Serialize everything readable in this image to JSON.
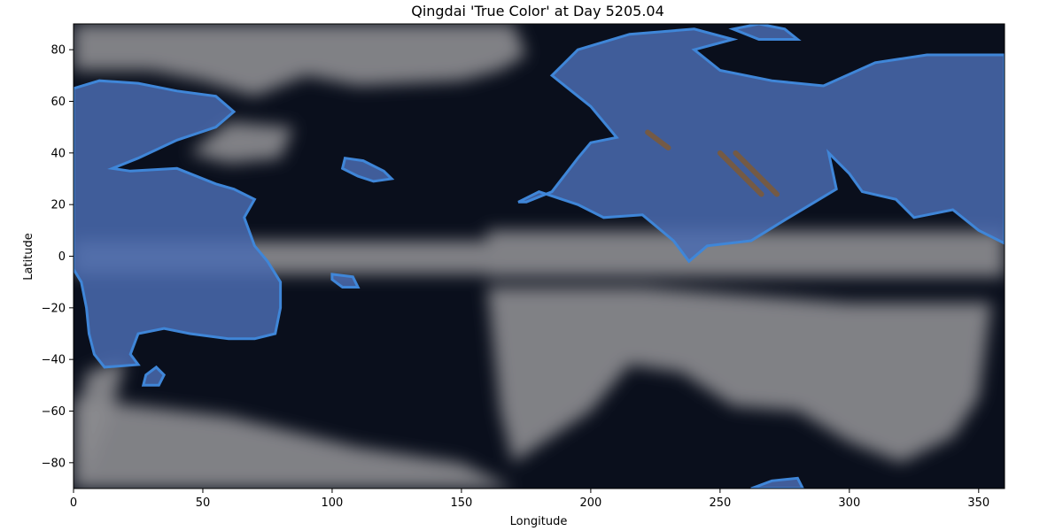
{
  "chart_data": {
    "type": "heatmap",
    "title": "Qingdai 'True Color' at Day 5205.04",
    "xlabel": "Longitude",
    "ylabel": "Latitude",
    "xlim": [
      0,
      360
    ],
    "ylim": [
      -90,
      90
    ],
    "xticks": [
      0,
      50,
      100,
      150,
      200,
      250,
      300,
      350
    ],
    "yticks": [
      -80,
      -60,
      -40,
      -20,
      0,
      20,
      40,
      60,
      80
    ],
    "grid": false,
    "colors": {
      "ocean": "#0a0f1c",
      "cloud": "#8a8a8e",
      "bright_cloud": "#c4c4c8",
      "land_tint": "#4a6bb0",
      "coast": "#3f86d8",
      "bright_land": "#7f9fe0",
      "desert_streak": "#7a5a3c"
    },
    "land_regions": [
      {
        "name": "west-continent",
        "outline": [
          [
            0,
            65
          ],
          [
            10,
            68
          ],
          [
            25,
            67
          ],
          [
            40,
            64
          ],
          [
            55,
            62
          ],
          [
            62,
            56
          ],
          [
            55,
            50
          ],
          [
            40,
            45
          ],
          [
            25,
            38
          ],
          [
            15,
            34
          ],
          [
            22,
            33
          ],
          [
            40,
            34
          ],
          [
            55,
            28
          ],
          [
            62,
            26
          ],
          [
            70,
            22
          ],
          [
            66,
            15
          ],
          [
            70,
            4
          ],
          [
            75,
            -2
          ],
          [
            80,
            -10
          ],
          [
            80,
            -20
          ],
          [
            78,
            -30
          ],
          [
            70,
            -32
          ],
          [
            60,
            -32
          ],
          [
            45,
            -30
          ],
          [
            35,
            -28
          ],
          [
            25,
            -30
          ],
          [
            22,
            -38
          ],
          [
            25,
            -42
          ],
          [
            12,
            -43
          ],
          [
            8,
            -38
          ],
          [
            6,
            -30
          ],
          [
            5,
            -20
          ],
          [
            3,
            -10
          ],
          [
            0,
            -5
          ]
        ]
      },
      {
        "name": "island-sw",
        "outline": [
          [
            28,
            -46
          ],
          [
            32,
            -43
          ],
          [
            35,
            -46
          ],
          [
            33,
            -50
          ],
          [
            27,
            -50
          ]
        ]
      },
      {
        "name": "island-mid-north",
        "outline": [
          [
            105,
            38
          ],
          [
            112,
            37
          ],
          [
            120,
            33
          ],
          [
            123,
            30
          ],
          [
            116,
            29
          ],
          [
            110,
            31
          ],
          [
            104,
            34
          ]
        ]
      },
      {
        "name": "island-mid-eq",
        "outline": [
          [
            100,
            -7
          ],
          [
            108,
            -8
          ],
          [
            110,
            -12
          ],
          [
            104,
            -12
          ],
          [
            100,
            -9
          ]
        ]
      },
      {
        "name": "east-continent",
        "outline": [
          [
            175,
            21
          ],
          [
            185,
            25
          ],
          [
            195,
            38
          ],
          [
            200,
            44
          ],
          [
            210,
            46
          ],
          [
            200,
            58
          ],
          [
            185,
            70
          ],
          [
            195,
            80
          ],
          [
            215,
            86
          ],
          [
            240,
            88
          ],
          [
            255,
            84
          ],
          [
            240,
            80
          ],
          [
            250,
            72
          ],
          [
            270,
            68
          ],
          [
            290,
            66
          ],
          [
            310,
            75
          ],
          [
            330,
            78
          ],
          [
            360,
            78
          ],
          [
            360,
            5
          ],
          [
            350,
            10
          ],
          [
            340,
            18
          ],
          [
            325,
            15
          ],
          [
            318,
            22
          ],
          [
            305,
            25
          ],
          [
            300,
            32
          ],
          [
            292,
            40
          ],
          [
            295,
            26
          ],
          [
            285,
            20
          ],
          [
            275,
            14
          ],
          [
            262,
            6
          ],
          [
            245,
            4
          ],
          [
            238,
            -2
          ],
          [
            232,
            6
          ],
          [
            220,
            16
          ],
          [
            205,
            15
          ],
          [
            195,
            20
          ],
          [
            180,
            25
          ],
          [
            172,
            21
          ]
        ]
      },
      {
        "name": "south-pole-patch",
        "outline": [
          [
            262,
            -90
          ],
          [
            270,
            -87
          ],
          [
            280,
            -86
          ],
          [
            282,
            -90
          ]
        ]
      },
      {
        "name": "north-pole-patch",
        "outline": [
          [
            265,
            90
          ],
          [
            275,
            88
          ],
          [
            280,
            84
          ],
          [
            265,
            84
          ],
          [
            255,
            88
          ]
        ]
      }
    ],
    "cloud_regions": [
      {
        "name": "equatorial-band-west",
        "outline": [
          [
            0,
            6
          ],
          [
            80,
            6
          ],
          [
            160,
            6
          ],
          [
            160,
            -7
          ],
          [
            80,
            -7
          ],
          [
            0,
            -7
          ]
        ]
      },
      {
        "name": "equatorial-band-east",
        "outline": [
          [
            160,
            10
          ],
          [
            360,
            10
          ],
          [
            360,
            -8
          ],
          [
            160,
            -8
          ]
        ]
      },
      {
        "name": "north-storm-arc",
        "outline": [
          [
            0,
            90
          ],
          [
            100,
            90
          ],
          [
            170,
            90
          ],
          [
            175,
            78
          ],
          [
            165,
            72
          ],
          [
            150,
            68
          ],
          [
            110,
            66
          ],
          [
            90,
            70
          ],
          [
            70,
            62
          ],
          [
            50,
            68
          ],
          [
            30,
            72
          ],
          [
            0,
            72
          ]
        ]
      },
      {
        "name": "south-cloud-field",
        "outline": [
          [
            160,
            -12
          ],
          [
            220,
            -12
          ],
          [
            300,
            -18
          ],
          [
            355,
            -18
          ],
          [
            350,
            -55
          ],
          [
            340,
            -70
          ],
          [
            320,
            -80
          ],
          [
            300,
            -72
          ],
          [
            280,
            -60
          ],
          [
            255,
            -58
          ],
          [
            235,
            -45
          ],
          [
            215,
            -42
          ],
          [
            200,
            -60
          ],
          [
            170,
            -80
          ],
          [
            165,
            -60
          ]
        ]
      },
      {
        "name": "southern-belt",
        "outline": [
          [
            0,
            -55
          ],
          [
            60,
            -62
          ],
          [
            110,
            -74
          ],
          [
            150,
            -80
          ],
          [
            170,
            -90
          ],
          [
            0,
            -90
          ]
        ]
      },
      {
        "name": "west-cloud-east-edge",
        "outline": [
          [
            60,
            52
          ],
          [
            85,
            50
          ],
          [
            80,
            38
          ],
          [
            60,
            36
          ],
          [
            45,
            40
          ]
        ]
      },
      {
        "name": "west-mid-cloud",
        "outline": [
          [
            0,
            -70
          ],
          [
            5,
            -45
          ],
          [
            20,
            -40
          ],
          [
            15,
            -60
          ],
          [
            5,
            -85
          ]
        ]
      }
    ],
    "desert_streaks": [
      {
        "from": [
          222,
          48
        ],
        "to": [
          230,
          42
        ]
      },
      {
        "from": [
          250,
          40
        ],
        "to": [
          266,
          24
        ]
      },
      {
        "from": [
          256,
          40
        ],
        "to": [
          272,
          24
        ]
      }
    ]
  }
}
